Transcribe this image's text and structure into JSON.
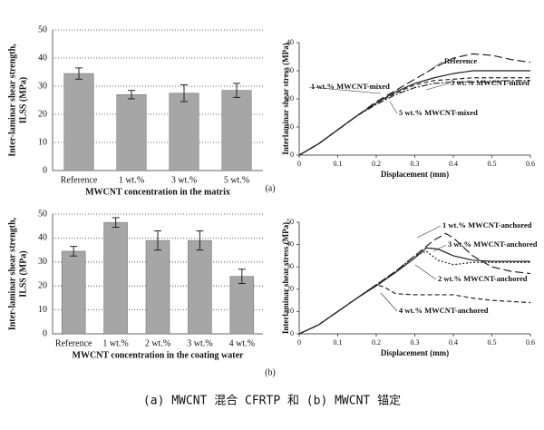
{
  "chart_data": [
    {
      "type": "bar",
      "ylabel": [
        "Inter-laminar shear strength,",
        "ILSS (MPa)"
      ],
      "xlabel": "MWCNT concentration in the matrix",
      "categories": [
        "Reference",
        "1 wt.%",
        "3 wt.%",
        "5 wt.%"
      ],
      "values": [
        34.5,
        27,
        27.5,
        28.5
      ],
      "errors": [
        2,
        1.5,
        3,
        2.5
      ],
      "color": "#a6a6a6",
      "ylim": [
        0,
        50
      ],
      "yticks": [
        0,
        10,
        20,
        30,
        40,
        50
      ],
      "grid": true
    },
    {
      "type": "line",
      "ylabel": "Interlaminar shear stress (MPa)",
      "xlabel": "Displacement (mm)",
      "xlim": [
        0,
        0.6
      ],
      "xticks": [
        0,
        0.1,
        0.2,
        0.3,
        0.4,
        0.5,
        0.6
      ],
      "ylim": [
        0,
        40
      ],
      "yticks": [
        0,
        10,
        20,
        30,
        40
      ],
      "series": [
        {
          "name": "Reference",
          "color": "#222222",
          "style": "long-dashed",
          "x": [
            0,
            0.05,
            0.1,
            0.15,
            0.2,
            0.25,
            0.3,
            0.35,
            0.4,
            0.45,
            0.5,
            0.55,
            0.6
          ],
          "values": [
            0,
            4,
            9,
            14,
            19,
            23,
            27,
            31,
            34.5,
            36,
            35.5,
            34,
            33
          ]
        },
        {
          "name": "1 wt.% MWCNT-mixed",
          "color": "#222222",
          "style": "dashed",
          "x": [
            0,
            0.05,
            0.1,
            0.15,
            0.2,
            0.25,
            0.3,
            0.35,
            0.4,
            0.45,
            0.5,
            0.55,
            0.6
          ],
          "values": [
            0,
            4,
            9,
            14,
            18.5,
            22,
            25,
            26.5,
            27,
            27.5,
            27.5,
            27.5,
            27.5
          ]
        },
        {
          "name": "3 wt.% MWCNT-mixed",
          "color": "#222222",
          "style": "solid",
          "x": [
            0,
            0.05,
            0.1,
            0.15,
            0.2,
            0.25,
            0.3,
            0.35,
            0.4,
            0.45,
            0.5,
            0.55,
            0.6
          ],
          "values": [
            0,
            4,
            9,
            14,
            18.5,
            22.5,
            25.5,
            27.5,
            29,
            30,
            30,
            30,
            30
          ]
        },
        {
          "name": "5 wt.% MWCNT-mixed",
          "color": "#222222",
          "style": "dashdot",
          "x": [
            0,
            0.05,
            0.1,
            0.15,
            0.2,
            0.25,
            0.3,
            0.35,
            0.4,
            0.45,
            0.5,
            0.55,
            0.6
          ],
          "values": [
            0,
            4,
            9,
            14,
            18,
            21.5,
            24,
            25.5,
            26,
            26,
            26,
            26.5,
            26.5
          ]
        }
      ]
    },
    {
      "type": "bar",
      "ylabel": [
        "Inter-laminar shear strength,",
        "ILSS (MPa)"
      ],
      "xlabel": "MWCNT concentration in the coating water",
      "categories": [
        "Reference",
        "1 wt.%",
        "2 wt.%",
        "3 wt.%",
        "4 wt.%"
      ],
      "values": [
        34.5,
        46.5,
        39,
        39,
        24
      ],
      "errors": [
        2,
        2,
        4,
        4,
        3
      ],
      "color": "#a6a6a6",
      "ylim": [
        0,
        50
      ],
      "yticks": [
        0,
        10,
        20,
        30,
        40,
        50
      ],
      "grid": true
    },
    {
      "type": "line",
      "ylabel": "Interlaminar shear stress (MPa)",
      "xlabel": "Displacement (mm)",
      "xlim": [
        0,
        0.6
      ],
      "xticks": [
        0,
        0.1,
        0.2,
        0.3,
        0.4,
        0.5,
        0.6
      ],
      "ylim": [
        0,
        50
      ],
      "yticks": [
        0,
        10,
        20,
        30,
        40,
        50
      ],
      "series": [
        {
          "name": "1 wt.% MWCNT-anchored",
          "color": "#222222",
          "style": "long-dashed",
          "x": [
            0,
            0.05,
            0.1,
            0.15,
            0.2,
            0.25,
            0.3,
            0.35,
            0.38,
            0.4,
            0.45,
            0.5,
            0.55,
            0.6
          ],
          "values": [
            0,
            4,
            10,
            16,
            22,
            28,
            35,
            42,
            45,
            43,
            35,
            30,
            28,
            27
          ]
        },
        {
          "name": "3 wt.% MWCNT-anchored",
          "color": "#222222",
          "style": "solid",
          "x": [
            0,
            0.05,
            0.1,
            0.15,
            0.2,
            0.25,
            0.3,
            0.33,
            0.36,
            0.4,
            0.45,
            0.5,
            0.6
          ],
          "values": [
            0,
            4,
            10,
            16,
            21.5,
            27.5,
            34,
            38.5,
            38,
            35,
            33,
            32.5,
            32.5
          ]
        },
        {
          "name": "2 wt.% MWCNT-anchored",
          "color": "#222222",
          "style": "dotted",
          "x": [
            0,
            0.05,
            0.1,
            0.15,
            0.2,
            0.25,
            0.3,
            0.33,
            0.36,
            0.4,
            0.45,
            0.5,
            0.6
          ],
          "values": [
            0,
            4,
            10,
            16,
            22,
            28,
            35,
            37,
            33,
            31,
            32,
            32,
            32
          ]
        },
        {
          "name": "4 wt.% MWCNT-anchored",
          "color": "#222222",
          "style": "dashed",
          "x": [
            0,
            0.05,
            0.1,
            0.15,
            0.2,
            0.22,
            0.25,
            0.3,
            0.35,
            0.4,
            0.45,
            0.5,
            0.55,
            0.6
          ],
          "values": [
            0,
            4,
            10,
            16,
            22,
            21,
            18,
            17.5,
            17.5,
            17.5,
            16,
            15,
            14.5,
            14
          ]
        }
      ]
    }
  ],
  "panel_labels": [
    "(a)",
    "(b)"
  ],
  "figure_caption": "(a) MWCNT 混合 CFRTP 和 (b) MWCNT 锚定"
}
